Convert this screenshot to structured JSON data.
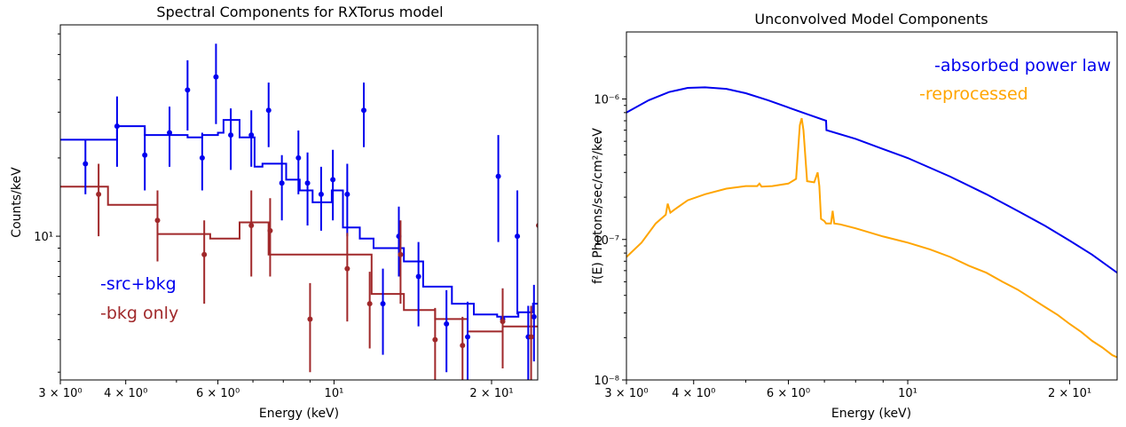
{
  "figure": {
    "left_panel": {
      "title": "Spectral Components for RXTorus model",
      "xlabel": "Energy (keV)",
      "ylabel": "Counts/keV"
    },
    "right_panel": {
      "title": "Unconvolved Model Components",
      "xlabel": "Energy (keV)",
      "ylabel": "f(E)  Photons/sec/cm²/keV"
    }
  },
  "chart_data": [
    {
      "type": "line",
      "title": "Spectral Components for RXTorus model",
      "xlabel": "Energy (keV)",
      "ylabel": "Counts/keV",
      "xscale": "log",
      "yscale": "log",
      "xlim": [
        3.0,
        24.5
      ],
      "ylim": [
        2.8,
        65
      ],
      "xticks": [
        {
          "value": 3,
          "label": "3 × 10⁰"
        },
        {
          "value": 4,
          "label": "4 × 10⁰"
        },
        {
          "value": 6,
          "label": "6 × 10⁰"
        },
        {
          "value": 10,
          "label": "10¹"
        },
        {
          "value": 20,
          "label": "2 × 10¹"
        }
      ],
      "yticks": [
        {
          "value": 10,
          "label": "10¹"
        }
      ],
      "legend_position": "lower-left",
      "colors": {
        "src": "#0000ee",
        "bkg": "#a0282a"
      },
      "series": [
        {
          "name": "-src+bkg",
          "style": "steps",
          "color": "#0000ee",
          "x": [
            3.0,
            3.85,
            4.35,
            4.85,
            5.25,
            5.6,
            6.0,
            6.15,
            6.6,
            7.05,
            7.3,
            8.1,
            8.6,
            9.1,
            9.9,
            10.4,
            11.2,
            11.9,
            13.6,
            14.8,
            16.8,
            18.5,
            20.5,
            22.5,
            24.0,
            24.5
          ],
          "y": [
            23.5,
            26.5,
            24.5,
            24.5,
            24.0,
            24.5,
            25.0,
            28.0,
            24.0,
            18.5,
            19.0,
            16.5,
            15.0,
            13.5,
            15.0,
            10.8,
            9.8,
            9.0,
            8.0,
            6.4,
            5.5,
            5.0,
            4.9,
            5.1,
            5.5,
            5.5
          ]
        },
        {
          "name": "-bkg only",
          "style": "steps",
          "color": "#a0282a",
          "x": [
            3.0,
            3.7,
            4.6,
            5.8,
            6.6,
            7.5,
            9.5,
            11.8,
            13.6,
            15.6,
            18.0,
            21.0,
            24.5
          ],
          "y": [
            15.5,
            13.2,
            10.2,
            9.8,
            11.3,
            8.5,
            8.5,
            6.0,
            5.2,
            4.8,
            4.3,
            4.5,
            4.5
          ]
        },
        {
          "name": "src+bkg data",
          "style": "errorbar",
          "color": "#0000ee",
          "x": [
            3.35,
            3.85,
            4.35,
            4.85,
            5.25,
            5.6,
            5.95,
            6.35,
            6.95,
            7.5,
            7.95,
            8.55,
            8.9,
            9.45,
            9.95,
            10.6,
            11.4,
            12.4,
            13.3,
            14.5,
            16.4,
            18.0,
            20.6,
            21.0,
            22.4,
            23.5,
            24.1
          ],
          "y": [
            19.0,
            26.5,
            20.5,
            25.0,
            36.5,
            20.0,
            41.0,
            24.5,
            24.5,
            30.5,
            16.0,
            20.0,
            16.0,
            14.5,
            16.5,
            14.5,
            30.5,
            5.5,
            10.0,
            7.0,
            4.6,
            4.1,
            17.0,
            4.8,
            10.0,
            4.1,
            4.9
          ],
          "err": [
            4.5,
            8.0,
            5.5,
            6.5,
            11.0,
            5.0,
            14.0,
            6.5,
            6.0,
            8.5,
            4.5,
            5.5,
            5.0,
            4.0,
            5.0,
            4.5,
            8.5,
            2.0,
            3.0,
            2.5,
            1.6,
            1.5,
            7.5,
            1.5,
            5.0,
            1.3,
            1.6
          ]
        },
        {
          "name": "bkg data",
          "style": "errorbar",
          "color": "#a0282a",
          "x": [
            3.55,
            4.6,
            5.65,
            6.95,
            7.55,
            9.0,
            10.6,
            11.7,
            13.4,
            15.6,
            17.6,
            21.0,
            23.8,
            24.6
          ],
          "y": [
            14.5,
            11.5,
            8.5,
            11.0,
            10.5,
            4.8,
            7.5,
            5.5,
            8.5,
            4.0,
            3.8,
            4.7,
            4.1,
            11.0
          ],
          "err": [
            4.5,
            3.5,
            3.0,
            4.0,
            3.5,
            1.8,
            2.8,
            1.8,
            3.0,
            1.3,
            1.1,
            1.6,
            1.3,
            3.5
          ]
        }
      ]
    },
    {
      "type": "line",
      "title": "Unconvolved Model Components",
      "xlabel": "Energy (keV)",
      "ylabel": "f(E)  Photons/sec/cm²/keV",
      "xscale": "log",
      "yscale": "log",
      "xlim": [
        3.0,
        24.5
      ],
      "ylim": [
        1e-08,
        3e-06
      ],
      "xticks": [
        {
          "value": 3,
          "label": "3 × 10⁰"
        },
        {
          "value": 4,
          "label": "4 × 10⁰"
        },
        {
          "value": 6,
          "label": "6 × 10⁰"
        },
        {
          "value": 10,
          "label": "10¹"
        },
        {
          "value": 20,
          "label": "2 × 10¹"
        }
      ],
      "yticks": [
        {
          "value": 1e-08,
          "label": "10⁻⁸"
        },
        {
          "value": 1e-07,
          "label": "10⁻⁷"
        },
        {
          "value": 1e-06,
          "label": "10⁻⁶"
        }
      ],
      "legend_position": "top-right",
      "colors": {
        "absorbed": "#0000ee",
        "reprocessed": "#ffa500"
      },
      "series": [
        {
          "name": "-absorbed power law",
          "style": "line",
          "color": "#0000ee",
          "x": [
            3.0,
            3.3,
            3.6,
            3.9,
            4.2,
            4.6,
            5.0,
            5.5,
            6.0,
            6.5,
            7.05,
            7.06,
            8.0,
            9.0,
            10.0,
            12.0,
            14.0,
            16.0,
            18.0,
            20.0,
            22.0,
            24.5
          ],
          "y": [
            8e-07,
            9.8e-07,
            1.12e-06,
            1.2e-06,
            1.21e-06,
            1.18e-06,
            1.1e-06,
            9.8e-07,
            8.7e-07,
            7.8e-07,
            7e-07,
            6e-07,
            5.2e-07,
            4.4e-07,
            3.8e-07,
            2.8e-07,
            2.1e-07,
            1.6e-07,
            1.25e-07,
            9.8e-08,
            7.8e-08,
            5.8e-08
          ]
        },
        {
          "name": "-reprocessed",
          "style": "line",
          "color": "#ffa500",
          "x": [
            3.0,
            3.2,
            3.4,
            3.55,
            3.58,
            3.62,
            3.7,
            3.9,
            4.2,
            4.6,
            5.0,
            5.25,
            5.3,
            5.35,
            5.6,
            6.0,
            6.2,
            6.3,
            6.35,
            6.4,
            6.5,
            6.7,
            6.8,
            6.85,
            6.9,
            7.0,
            7.05,
            7.2,
            7.25,
            7.3,
            7.5,
            8.0,
            9.0,
            10.0,
            11.0,
            12.0,
            13.0,
            14.0,
            15.0,
            16.0,
            17.0,
            18.0,
            19.0,
            20.0,
            21.0,
            22.0,
            23.0,
            24.0,
            24.5
          ],
          "y": [
            7.5e-08,
            9.5e-08,
            1.3e-07,
            1.5e-07,
            1.8e-07,
            1.55e-07,
            1.65e-07,
            1.9e-07,
            2.1e-07,
            2.3e-07,
            2.4e-07,
            2.4e-07,
            2.5e-07,
            2.38e-07,
            2.4e-07,
            2.5e-07,
            2.7e-07,
            6.5e-07,
            7.3e-07,
            6e-07,
            2.6e-07,
            2.55e-07,
            3e-07,
            2.4e-07,
            1.4e-07,
            1.35e-07,
            1.3e-07,
            1.3e-07,
            1.6e-07,
            1.3e-07,
            1.28e-07,
            1.2e-07,
            1.05e-07,
            9.5e-08,
            8.5e-08,
            7.5e-08,
            6.5e-08,
            5.8e-08,
            5e-08,
            4.4e-08,
            3.8e-08,
            3.3e-08,
            2.9e-08,
            2.5e-08,
            2.2e-08,
            1.9e-08,
            1.7e-08,
            1.5e-08,
            1.45e-08
          ]
        }
      ]
    }
  ]
}
